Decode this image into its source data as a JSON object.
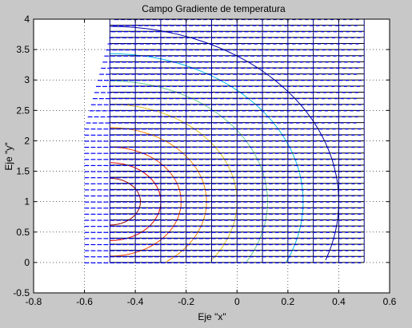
{
  "chart_data": {
    "type": "quiver-contour",
    "title": "Campo Gradiente de temperatura",
    "xlabel": "Eje \"x\"",
    "ylabel": "Eje \"y\"",
    "xlim": [
      -0.8,
      0.6
    ],
    "ylim": [
      -0.5,
      4
    ],
    "xticks": [
      "-0.8",
      "-0.6",
      "-0.4",
      "-0.2",
      "0",
      "0.2",
      "0.4",
      "0.6"
    ],
    "yticks": [
      "-0.5",
      "0",
      "0.5",
      "1",
      "1.5",
      "2",
      "2.5",
      "3",
      "3.5",
      "4"
    ],
    "grid": true,
    "grid_style": "dotted",
    "mesh": {
      "x_range": [
        -0.5,
        0.5
      ],
      "y_range": [
        0,
        4
      ],
      "vertical_lines_x": [
        -0.5,
        -0.4,
        -0.3,
        -0.2,
        -0.1,
        0,
        0.1,
        0.2,
        0.3,
        0.4,
        0.5
      ],
      "horizontal_line_count": 41,
      "color": "#000080"
    },
    "quiver": {
      "color": "#0000ff",
      "y_rows": 41,
      "x_start": -0.6,
      "x_end": 0.5,
      "direction": "negative-x"
    },
    "contours": {
      "center": [
        -0.5,
        1.0
      ],
      "radii": [
        0.12,
        0.2,
        0.28,
        0.38,
        0.5,
        0.62,
        0.76,
        0.9
      ],
      "colors": [
        "#990000",
        "#dd0000",
        "#ff4400",
        "#ff8800",
        "#e0c020",
        "#66cc99",
        "#00bbee",
        "#0000aa"
      ]
    },
    "colors": {
      "figure_background": "#c8c8c8",
      "axes_background": "#ffffff"
    }
  }
}
